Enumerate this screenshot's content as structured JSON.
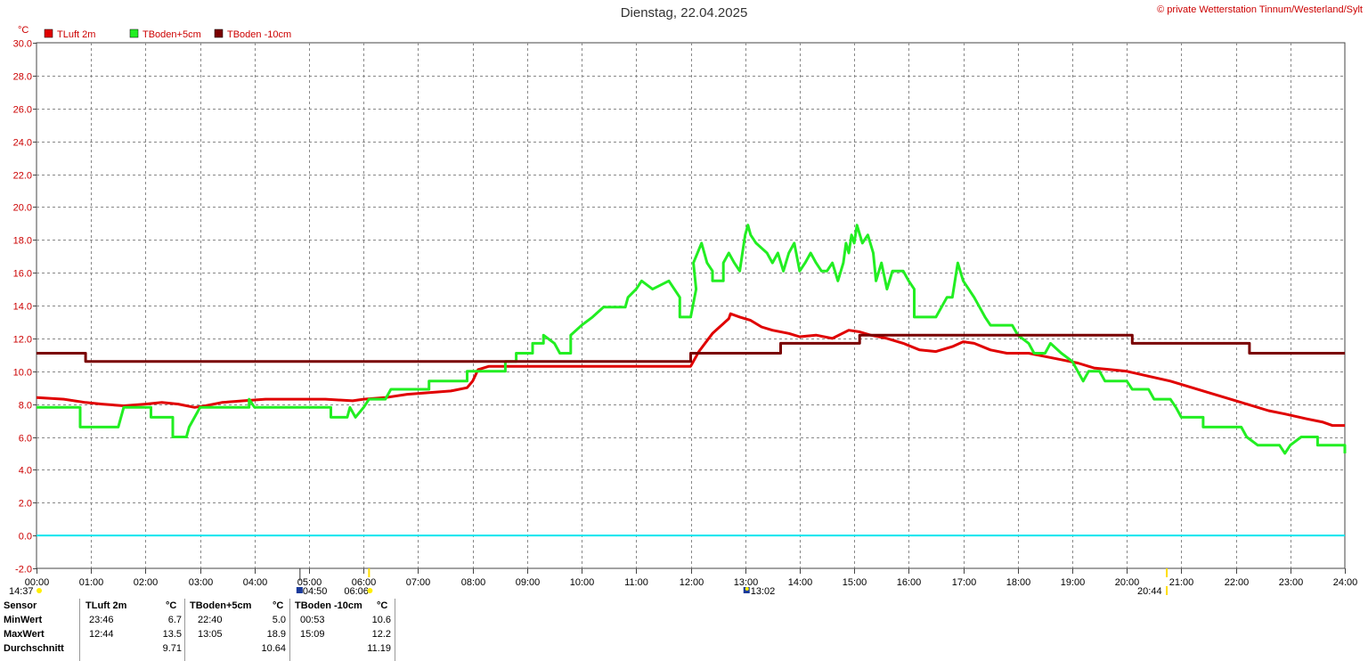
{
  "header": {
    "title": "Dienstag, 22.04.2025",
    "copyright": "© private Wetterstation Tinnum/Westerland/Sylt"
  },
  "chart_data": {
    "type": "line",
    "yunit": "°C",
    "ylim": [
      -2,
      30
    ],
    "yticks": [
      "30.0",
      "28.0",
      "26.0",
      "24.0",
      "22.0",
      "20.0",
      "18.0",
      "16.0",
      "14.0",
      "12.0",
      "10.0",
      "8.0",
      "6.0",
      "4.0",
      "2.0",
      "0.0",
      "-2.0"
    ],
    "xlim": [
      0,
      24
    ],
    "xticks": [
      "00:00",
      "01:00",
      "02:00",
      "03:00",
      "04:00",
      "05:00",
      "06:00",
      "07:00",
      "08:00",
      "09:00",
      "10:00",
      "11:00",
      "12:00",
      "13:00",
      "14:00",
      "15:00",
      "16:00",
      "17:00",
      "18:00",
      "19:00",
      "20:00",
      "21:00",
      "22:00",
      "23:00",
      "24:00"
    ],
    "grid": true,
    "legend_position": "top-left",
    "zero_line_color": "#00e5ee",
    "series": [
      {
        "name": "TLuft 2m",
        "color": "#e00000",
        "points": [
          [
            0,
            8.4
          ],
          [
            0.5,
            8.3
          ],
          [
            0.9,
            8.1
          ],
          [
            1.2,
            8.0
          ],
          [
            1.6,
            7.9
          ],
          [
            2.0,
            8.0
          ],
          [
            2.3,
            8.1
          ],
          [
            2.6,
            8.0
          ],
          [
            2.9,
            7.8
          ],
          [
            3.1,
            7.9
          ],
          [
            3.4,
            8.1
          ],
          [
            3.8,
            8.2
          ],
          [
            4.2,
            8.3
          ],
          [
            4.8,
            8.3
          ],
          [
            5.3,
            8.3
          ],
          [
            5.8,
            8.2
          ],
          [
            6.0,
            8.3
          ],
          [
            6.4,
            8.4
          ],
          [
            6.8,
            8.6
          ],
          [
            7.2,
            8.7
          ],
          [
            7.6,
            8.8
          ],
          [
            7.9,
            9.0
          ],
          [
            8.0,
            9.4
          ],
          [
            8.1,
            10.1
          ],
          [
            8.3,
            10.3
          ],
          [
            8.8,
            10.3
          ],
          [
            11.5,
            10.3
          ],
          [
            12.0,
            10.3
          ],
          [
            12.15,
            11.2
          ],
          [
            12.4,
            12.3
          ],
          [
            12.7,
            13.2
          ],
          [
            12.73,
            13.5
          ],
          [
            12.9,
            13.3
          ],
          [
            13.1,
            13.1
          ],
          [
            13.3,
            12.7
          ],
          [
            13.5,
            12.5
          ],
          [
            13.8,
            12.3
          ],
          [
            14.0,
            12.1
          ],
          [
            14.3,
            12.2
          ],
          [
            14.6,
            12.0
          ],
          [
            14.9,
            12.5
          ],
          [
            15.1,
            12.4
          ],
          [
            15.3,
            12.2
          ],
          [
            15.6,
            12.0
          ],
          [
            15.9,
            11.7
          ],
          [
            16.2,
            11.3
          ],
          [
            16.5,
            11.2
          ],
          [
            16.8,
            11.5
          ],
          [
            17.0,
            11.8
          ],
          [
            17.2,
            11.7
          ],
          [
            17.5,
            11.3
          ],
          [
            17.8,
            11.1
          ],
          [
            18.2,
            11.1
          ],
          [
            18.5,
            10.9
          ],
          [
            18.8,
            10.7
          ],
          [
            19.1,
            10.5
          ],
          [
            19.4,
            10.2
          ],
          [
            19.7,
            10.1
          ],
          [
            20.0,
            10.0
          ],
          [
            20.4,
            9.7
          ],
          [
            20.8,
            9.4
          ],
          [
            21.2,
            9.0
          ],
          [
            21.6,
            8.6
          ],
          [
            21.9,
            8.3
          ],
          [
            22.2,
            8.0
          ],
          [
            22.6,
            7.6
          ],
          [
            22.9,
            7.4
          ],
          [
            23.3,
            7.1
          ],
          [
            23.6,
            6.9
          ],
          [
            23.77,
            6.7
          ],
          [
            24.0,
            6.7
          ]
        ]
      },
      {
        "name": "TBoden+5cm",
        "color": "#22ee22",
        "points": [
          [
            0,
            7.8
          ],
          [
            0.8,
            7.8
          ],
          [
            0.8,
            6.6
          ],
          [
            1.5,
            6.6
          ],
          [
            1.6,
            7.8
          ],
          [
            2.1,
            7.8
          ],
          [
            2.1,
            7.2
          ],
          [
            2.5,
            7.2
          ],
          [
            2.5,
            6.0
          ],
          [
            2.75,
            6.0
          ],
          [
            2.8,
            6.6
          ],
          [
            2.9,
            7.2
          ],
          [
            3.0,
            7.8
          ],
          [
            3.9,
            7.8
          ],
          [
            3.9,
            8.3
          ],
          [
            4.0,
            7.8
          ],
          [
            5.4,
            7.8
          ],
          [
            5.4,
            7.2
          ],
          [
            5.7,
            7.2
          ],
          [
            5.75,
            7.8
          ],
          [
            5.85,
            7.2
          ],
          [
            6.0,
            7.8
          ],
          [
            6.1,
            8.3
          ],
          [
            6.4,
            8.3
          ],
          [
            6.5,
            8.9
          ],
          [
            7.2,
            8.9
          ],
          [
            7.2,
            9.4
          ],
          [
            7.9,
            9.4
          ],
          [
            7.9,
            10.0
          ],
          [
            8.6,
            10.0
          ],
          [
            8.6,
            10.6
          ],
          [
            8.8,
            10.6
          ],
          [
            8.8,
            11.1
          ],
          [
            9.1,
            11.1
          ],
          [
            9.1,
            11.7
          ],
          [
            9.3,
            11.7
          ],
          [
            9.3,
            12.2
          ],
          [
            9.5,
            11.7
          ],
          [
            9.6,
            11.1
          ],
          [
            9.8,
            11.1
          ],
          [
            9.8,
            12.2
          ],
          [
            10.0,
            12.8
          ],
          [
            10.2,
            13.3
          ],
          [
            10.4,
            13.9
          ],
          [
            10.8,
            13.9
          ],
          [
            10.85,
            14.5
          ],
          [
            11.0,
            15.0
          ],
          [
            11.1,
            15.5
          ],
          [
            11.3,
            15.0
          ],
          [
            11.6,
            15.5
          ],
          [
            11.8,
            14.5
          ],
          [
            11.8,
            13.3
          ],
          [
            12.0,
            13.3
          ],
          [
            12.1,
            15.0
          ],
          [
            12.05,
            16.6
          ],
          [
            12.2,
            17.8
          ],
          [
            12.3,
            16.6
          ],
          [
            12.4,
            16.1
          ],
          [
            12.4,
            15.5
          ],
          [
            12.6,
            15.5
          ],
          [
            12.6,
            16.6
          ],
          [
            12.7,
            17.2
          ],
          [
            12.8,
            16.6
          ],
          [
            12.9,
            16.1
          ],
          [
            12.95,
            17.2
          ],
          [
            13.0,
            18.3
          ],
          [
            13.05,
            18.9
          ],
          [
            13.1,
            18.3
          ],
          [
            13.2,
            17.8
          ],
          [
            13.4,
            17.2
          ],
          [
            13.5,
            16.6
          ],
          [
            13.6,
            17.2
          ],
          [
            13.7,
            16.1
          ],
          [
            13.8,
            17.2
          ],
          [
            13.9,
            17.8
          ],
          [
            14.0,
            16.1
          ],
          [
            14.1,
            16.6
          ],
          [
            14.2,
            17.2
          ],
          [
            14.3,
            16.6
          ],
          [
            14.4,
            16.1
          ],
          [
            14.5,
            16.1
          ],
          [
            14.6,
            16.6
          ],
          [
            14.7,
            15.5
          ],
          [
            14.8,
            16.6
          ],
          [
            14.85,
            17.8
          ],
          [
            14.9,
            17.2
          ],
          [
            14.95,
            18.3
          ],
          [
            15.0,
            17.8
          ],
          [
            15.05,
            18.9
          ],
          [
            15.15,
            17.8
          ],
          [
            15.25,
            18.3
          ],
          [
            15.35,
            17.2
          ],
          [
            15.4,
            15.5
          ],
          [
            15.5,
            16.6
          ],
          [
            15.6,
            15.0
          ],
          [
            15.7,
            16.1
          ],
          [
            15.9,
            16.1
          ],
          [
            16.0,
            15.5
          ],
          [
            16.1,
            15.0
          ],
          [
            16.1,
            13.3
          ],
          [
            16.5,
            13.3
          ],
          [
            16.6,
            13.9
          ],
          [
            16.7,
            14.5
          ],
          [
            16.8,
            14.5
          ],
          [
            16.9,
            16.6
          ],
          [
            17.0,
            15.5
          ],
          [
            17.1,
            15.0
          ],
          [
            17.2,
            14.5
          ],
          [
            17.3,
            13.9
          ],
          [
            17.4,
            13.3
          ],
          [
            17.5,
            12.8
          ],
          [
            17.9,
            12.8
          ],
          [
            18.0,
            12.2
          ],
          [
            18.2,
            11.7
          ],
          [
            18.3,
            11.1
          ],
          [
            18.5,
            11.1
          ],
          [
            18.6,
            11.7
          ],
          [
            18.8,
            11.1
          ],
          [
            19.0,
            10.6
          ],
          [
            19.1,
            10.0
          ],
          [
            19.2,
            9.4
          ],
          [
            19.3,
            10.0
          ],
          [
            19.5,
            10.0
          ],
          [
            19.6,
            9.4
          ],
          [
            20.0,
            9.4
          ],
          [
            20.1,
            8.9
          ],
          [
            20.4,
            8.9
          ],
          [
            20.5,
            8.3
          ],
          [
            20.8,
            8.3
          ],
          [
            20.9,
            7.8
          ],
          [
            21.0,
            7.2
          ],
          [
            21.4,
            7.2
          ],
          [
            21.4,
            6.6
          ],
          [
            22.1,
            6.6
          ],
          [
            22.2,
            6.0
          ],
          [
            22.4,
            5.5
          ],
          [
            22.8,
            5.5
          ],
          [
            22.9,
            5.0
          ],
          [
            23.0,
            5.5
          ],
          [
            23.2,
            6.0
          ],
          [
            23.5,
            6.0
          ],
          [
            23.5,
            5.5
          ],
          [
            24.0,
            5.5
          ],
          [
            24.0,
            5.0
          ]
        ]
      },
      {
        "name": "TBoden -10cm",
        "color": "#7a0000",
        "points": [
          [
            0,
            11.1
          ],
          [
            0.9,
            11.1
          ],
          [
            0.9,
            10.6
          ],
          [
            12.0,
            10.6
          ],
          [
            12.0,
            11.1
          ],
          [
            13.65,
            11.1
          ],
          [
            13.65,
            11.7
          ],
          [
            15.1,
            11.7
          ],
          [
            15.1,
            12.2
          ],
          [
            20.1,
            12.2
          ],
          [
            20.1,
            11.7
          ],
          [
            22.25,
            11.7
          ],
          [
            22.25,
            11.1
          ],
          [
            24.0,
            11.1
          ]
        ]
      }
    ]
  },
  "sun_markers": {
    "sunrise_prev": "14:37",
    "dawn": "04:50",
    "sunrise": "06:06",
    "noon": "13:02",
    "sunset": "20:44"
  },
  "stats": {
    "sensor_label": "Sensor",
    "min_label": "MinWert",
    "max_label": "MaxWert",
    "avg_label": "Durchschnitt",
    "unit": "°C",
    "columns": [
      {
        "name": "TLuft 2m",
        "min_time": "23:46",
        "min": "6.7",
        "max_time": "12:44",
        "max": "13.5",
        "avg": "9.71"
      },
      {
        "name": "TBoden+5cm",
        "min_time": "22:40",
        "min": "5.0",
        "max_time": "13:05",
        "max": "18.9",
        "avg": "10.64"
      },
      {
        "name": "TBoden -10cm",
        "min_time": "00:53",
        "min": "10.6",
        "max_time": "15:09",
        "max": "12.2",
        "avg": "11.19"
      }
    ]
  }
}
